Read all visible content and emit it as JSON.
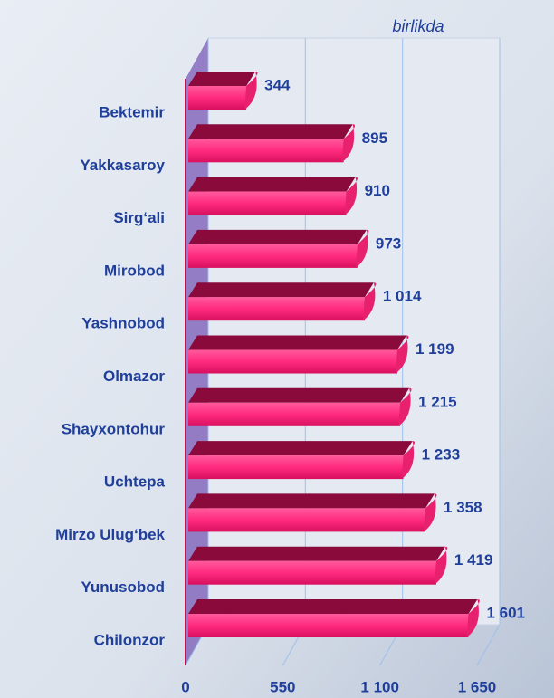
{
  "chart_data": {
    "type": "bar",
    "orientation": "horizontal",
    "subtitle": "birlikda",
    "categories": [
      "Bektemir",
      "Yakkasaroy",
      "Sirg‘ali",
      "Mirobod",
      "Yashnobod",
      "Olmazor",
      "Shayxontohur",
      "Uchtepa",
      "Mirzo Ulug‘bek",
      "Yunusobod",
      "Chilonzor"
    ],
    "values": [
      344,
      895,
      910,
      973,
      1014,
      1199,
      1215,
      1233,
      1358,
      1419,
      1601
    ],
    "value_labels": [
      "344",
      "895",
      "910",
      "973",
      "1 014",
      "1 199",
      "1 215",
      "1 233",
      "1 358",
      "1 419",
      "1 601"
    ],
    "color": "#ff2a7f",
    "xlim": [
      0,
      1650
    ],
    "xticks": [
      0,
      550,
      {
        "value": 1100,
        "label": "1 100"
      },
      {
        "value": 1650,
        "label": "1 650"
      }
    ],
    "grid": true
  }
}
